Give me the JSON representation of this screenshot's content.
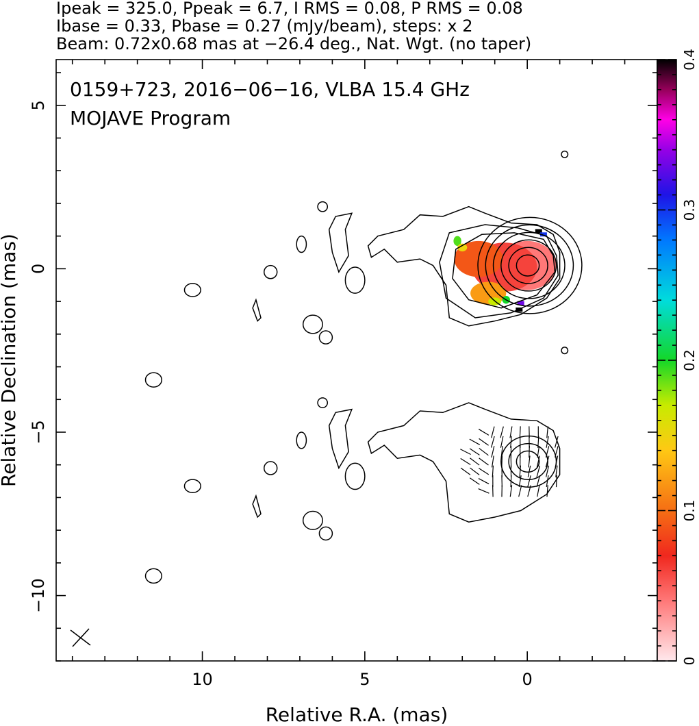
{
  "chart_data": {
    "type": "heatmap",
    "header_lines": [
      "Ipeak = 325.0, Ppeak = 6.7, I RMS = 0.08, P RMS = 0.08",
      "Ibase = 0.33, Pbase = 0.27 (mJy/beam), steps: x 2",
      "Beam: 0.72x0.68 mas at −26.4 deg., Nat. Wgt. (no taper)"
    ],
    "annotations": [
      "0159+723, 2016−06−16, VLBA 15.4 GHz",
      "MOJAVE Program"
    ],
    "xlabel": "Relative R.A. (mas)",
    "ylabel": "Relative Declination (mas)",
    "xlim": [
      14.5,
      -4
    ],
    "ylim": [
      -12,
      6.4
    ],
    "xticks": [
      10,
      5,
      0
    ],
    "xtick_labels": [
      "10",
      "5",
      "0"
    ],
    "yticks": [
      5,
      0,
      -5,
      -10
    ],
    "ytick_labels": [
      "5",
      "0",
      "−5",
      "−10"
    ],
    "colorbar": {
      "min": 0,
      "max": 0.4,
      "ticks": [
        0,
        0.1,
        0.2,
        0.3,
        0.4
      ],
      "tick_labels": [
        "0",
        "0.1",
        "0.2",
        "0.3",
        "0.4"
      ]
    },
    "colors": {
      "frame": "#000000",
      "contour": "#000000",
      "background": "#ffffff"
    },
    "core_component": {
      "ra": 0.0,
      "dec": 0.1,
      "contour_radii_mas": [
        0.35,
        0.6,
        0.85,
        1.1,
        1.35,
        1.6
      ]
    },
    "lower_panel_offset_dec": -6.0,
    "fractional_polarization_blobs": [
      {
        "ra": 0.0,
        "dec": 0.1,
        "rx": 0.9,
        "ry": 0.75,
        "value": 0.04
      },
      {
        "ra": 0.7,
        "dec": 0.05,
        "rx": 1.0,
        "ry": 0.75,
        "value": 0.06
      },
      {
        "ra": 1.5,
        "dec": 0.3,
        "rx": 0.75,
        "ry": 0.55,
        "value": 0.09
      },
      {
        "ra": 1.2,
        "dec": -0.75,
        "rx": 0.55,
        "ry": 0.35,
        "value": 0.12
      },
      {
        "ra": 1.0,
        "dec": -1.0,
        "rx": 0.2,
        "ry": 0.12,
        "value": 0.17
      },
      {
        "ra": 2.15,
        "dec": 0.85,
        "rx": 0.12,
        "ry": 0.15,
        "value": 0.19
      },
      {
        "ra": 2.0,
        "dec": 0.65,
        "rx": 0.15,
        "ry": 0.12,
        "value": 0.15
      },
      {
        "ra": 0.65,
        "dec": -0.95,
        "rx": 0.12,
        "ry": 0.12,
        "value": 0.2
      }
    ],
    "outlier_pixels": [
      {
        "ra": -0.35,
        "dec": 1.15,
        "value": 0.4
      },
      {
        "ra": -0.5,
        "dec": 1.05,
        "value": 0.3
      },
      {
        "ra": 0.25,
        "dec": -1.25,
        "value": 0.4
      },
      {
        "ra": 0.2,
        "dec": -1.05,
        "value": 0.33
      }
    ]
  }
}
